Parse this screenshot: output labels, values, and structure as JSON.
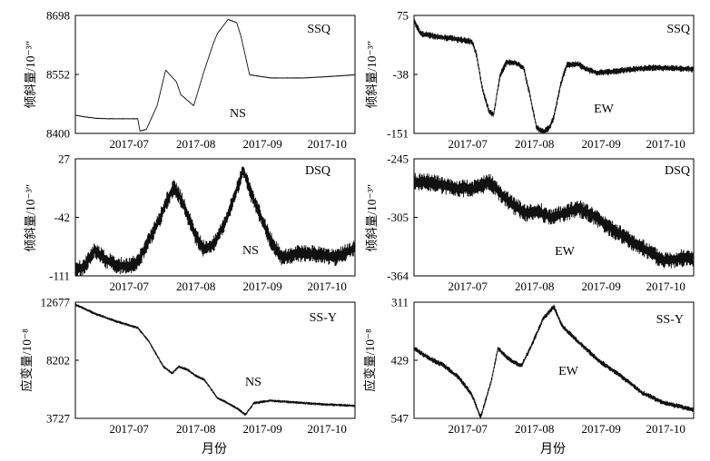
{
  "figure": {
    "x_axis_label": "月份"
  },
  "chart_data": [
    {
      "type": "line",
      "station": "SSQ",
      "component": "NS",
      "ylabel": "倾斜量/10⁻³″",
      "ylim": [
        8400,
        8698
      ],
      "yticks": [
        "8698",
        "8552",
        "8400"
      ],
      "xticks": [
        "2017-07",
        "2017-08",
        "2017-09",
        "2017-10"
      ],
      "xdomain": [
        "2017-06-21",
        "2017-10-29"
      ],
      "y_inverted": false,
      "noise": 0.6,
      "series": [
        {
          "x": [
            "2017-06-21",
            "2017-06-25",
            "2017-07-01",
            "2017-07-07",
            "2017-07-14",
            "2017-07-20",
            "2017-07-21",
            "2017-07-24",
            "2017-07-29",
            "2017-08-02",
            "2017-08-07",
            "2017-08-09",
            "2017-08-15",
            "2017-08-20",
            "2017-08-24",
            "2017-08-26",
            "2017-08-31",
            "2017-09-04",
            "2017-09-06",
            "2017-09-10",
            "2017-09-20",
            "2017-10-05",
            "2017-10-15",
            "2017-10-29"
          ],
          "y": [
            8446,
            8442,
            8438,
            8437,
            8437,
            8437,
            8406,
            8410,
            8470,
            8560,
            8530,
            8498,
            8470,
            8560,
            8625,
            8652,
            8688,
            8680,
            8645,
            8548,
            8540,
            8540,
            8543,
            8548
          ]
        }
      ]
    },
    {
      "type": "line",
      "station": "SSQ",
      "component": "EW",
      "ylabel": "倾斜量/10⁻³″",
      "ylim": [
        -151,
        75
      ],
      "yticks": [
        "75",
        "-38",
        "-151"
      ],
      "xticks": [
        "2017-07",
        "2017-08",
        "2017-09",
        "2017-10"
      ],
      "xdomain": [
        "2017-06-21",
        "2017-10-29"
      ],
      "y_inverted": false,
      "noise": 6,
      "series": [
        {
          "x": [
            "2017-06-21",
            "2017-06-24",
            "2017-07-01",
            "2017-07-10",
            "2017-07-18",
            "2017-07-20",
            "2017-07-23",
            "2017-07-26",
            "2017-07-28",
            "2017-07-31",
            "2017-08-03",
            "2017-08-07",
            "2017-08-11",
            "2017-08-14",
            "2017-08-17",
            "2017-08-20",
            "2017-08-23",
            "2017-08-25",
            "2017-08-28",
            "2017-08-31",
            "2017-09-05",
            "2017-09-10",
            "2017-09-15",
            "2017-10-01",
            "2017-10-10",
            "2017-10-29"
          ],
          "y": [
            65,
            40,
            35,
            30,
            25,
            0,
            -70,
            -110,
            -115,
            -40,
            -15,
            -15,
            -25,
            -80,
            -140,
            -148,
            -140,
            -120,
            -60,
            -20,
            -18,
            -30,
            -35,
            -28,
            -25,
            -28
          ]
        }
      ]
    },
    {
      "type": "line",
      "station": "DSQ",
      "component": "NS",
      "ylabel": "倾斜量/10⁻³″",
      "ylim": [
        -111,
        27
      ],
      "yticks": [
        "27",
        "-42",
        "-111"
      ],
      "xticks": [
        "2017-07",
        "2017-08",
        "2017-09",
        "2017-10"
      ],
      "xdomain": [
        "2017-06-21",
        "2017-10-29"
      ],
      "y_inverted": false,
      "noise": 10,
      "series": [
        {
          "x": [
            "2017-06-21",
            "2017-06-25",
            "2017-06-30",
            "2017-07-05",
            "2017-07-10",
            "2017-07-15",
            "2017-07-20",
            "2017-07-25",
            "2017-07-30",
            "2017-08-03",
            "2017-08-06",
            "2017-08-10",
            "2017-08-16",
            "2017-08-20",
            "2017-08-25",
            "2017-08-30",
            "2017-09-04",
            "2017-09-07",
            "2017-09-10",
            "2017-09-15",
            "2017-09-20",
            "2017-09-25",
            "2017-10-01",
            "2017-10-10",
            "2017-10-20",
            "2017-10-29"
          ],
          "y": [
            -105,
            -100,
            -80,
            -92,
            -98,
            -100,
            -95,
            -70,
            -45,
            -20,
            -5,
            -25,
            -65,
            -80,
            -72,
            -45,
            -10,
            15,
            -10,
            -40,
            -70,
            -90,
            -85,
            -85,
            -90,
            -78
          ]
        }
      ]
    },
    {
      "type": "line",
      "station": "DSQ",
      "component": "EW",
      "ylabel": "倾斜量/10⁻³″",
      "ylim": [
        -364,
        -245
      ],
      "yticks": [
        "-245",
        "-305",
        "-364"
      ],
      "xticks": [
        "2017-07",
        "2017-08",
        "2017-09",
        "2017-10"
      ],
      "xdomain": [
        "2017-06-21",
        "2017-10-29"
      ],
      "y_inverted": false,
      "noise": 9,
      "series": [
        {
          "x": [
            "2017-06-21",
            "2017-07-01",
            "2017-07-10",
            "2017-07-20",
            "2017-07-26",
            "2017-08-01",
            "2017-08-06",
            "2017-08-12",
            "2017-08-18",
            "2017-08-24",
            "2017-08-30",
            "2017-09-05",
            "2017-09-12",
            "2017-09-20",
            "2017-10-01",
            "2017-10-15",
            "2017-10-29"
          ],
          "y": [
            -268,
            -270,
            -275,
            -275,
            -268,
            -282,
            -292,
            -300,
            -298,
            -305,
            -300,
            -295,
            -302,
            -315,
            -330,
            -348,
            -345
          ]
        }
      ]
    },
    {
      "type": "line",
      "station": "SS-Y",
      "component": "NS",
      "ylabel": "应变量/10⁻⁸",
      "ylim": [
        3727,
        12677
      ],
      "yticks": [
        "12677",
        "8202",
        "3727"
      ],
      "xticks": [
        "2017-07",
        "2017-08",
        "2017-09",
        "2017-10"
      ],
      "xdomain": [
        "2017-06-21",
        "2017-10-29"
      ],
      "y_inverted": false,
      "noise": 90,
      "series": [
        {
          "x": [
            "2017-06-21",
            "2017-06-30",
            "2017-07-10",
            "2017-07-20",
            "2017-07-25",
            "2017-08-01",
            "2017-08-05",
            "2017-08-08",
            "2017-08-12",
            "2017-08-16",
            "2017-08-20",
            "2017-08-26",
            "2017-09-01",
            "2017-09-05",
            "2017-09-08",
            "2017-09-12",
            "2017-09-20",
            "2017-10-01",
            "2017-10-15",
            "2017-10-29"
          ],
          "y": [
            12500,
            11800,
            11200,
            10700,
            9700,
            7700,
            7200,
            7700,
            7500,
            7000,
            6700,
            5300,
            4800,
            4400,
            4000,
            4900,
            5100,
            4950,
            4800,
            4700
          ]
        }
      ]
    },
    {
      "type": "line",
      "station": "SS-Y",
      "component": "EW",
      "ylabel": "应变量/10⁻⁸",
      "ylim": [
        311,
        547
      ],
      "yticks": [
        "311",
        "429",
        "547"
      ],
      "xticks": [
        "2017-07",
        "2017-08",
        "2017-09",
        "2017-10"
      ],
      "xdomain": [
        "2017-06-21",
        "2017-10-29"
      ],
      "y_inverted": true,
      "noise": 5,
      "series": [
        {
          "x": [
            "2017-06-21",
            "2017-06-28",
            "2017-07-05",
            "2017-07-12",
            "2017-07-18",
            "2017-07-22",
            "2017-07-27",
            "2017-07-30",
            "2017-08-05",
            "2017-08-10",
            "2017-08-14",
            "2017-08-20",
            "2017-08-25",
            "2017-08-29",
            "2017-09-05",
            "2017-09-15",
            "2017-09-25",
            "2017-10-05",
            "2017-10-15",
            "2017-10-29"
          ],
          "y": [
            405,
            425,
            440,
            465,
            500,
            545,
            470,
            405,
            430,
            440,
            405,
            345,
            320,
            360,
            390,
            430,
            460,
            495,
            515,
            530
          ]
        }
      ]
    }
  ]
}
